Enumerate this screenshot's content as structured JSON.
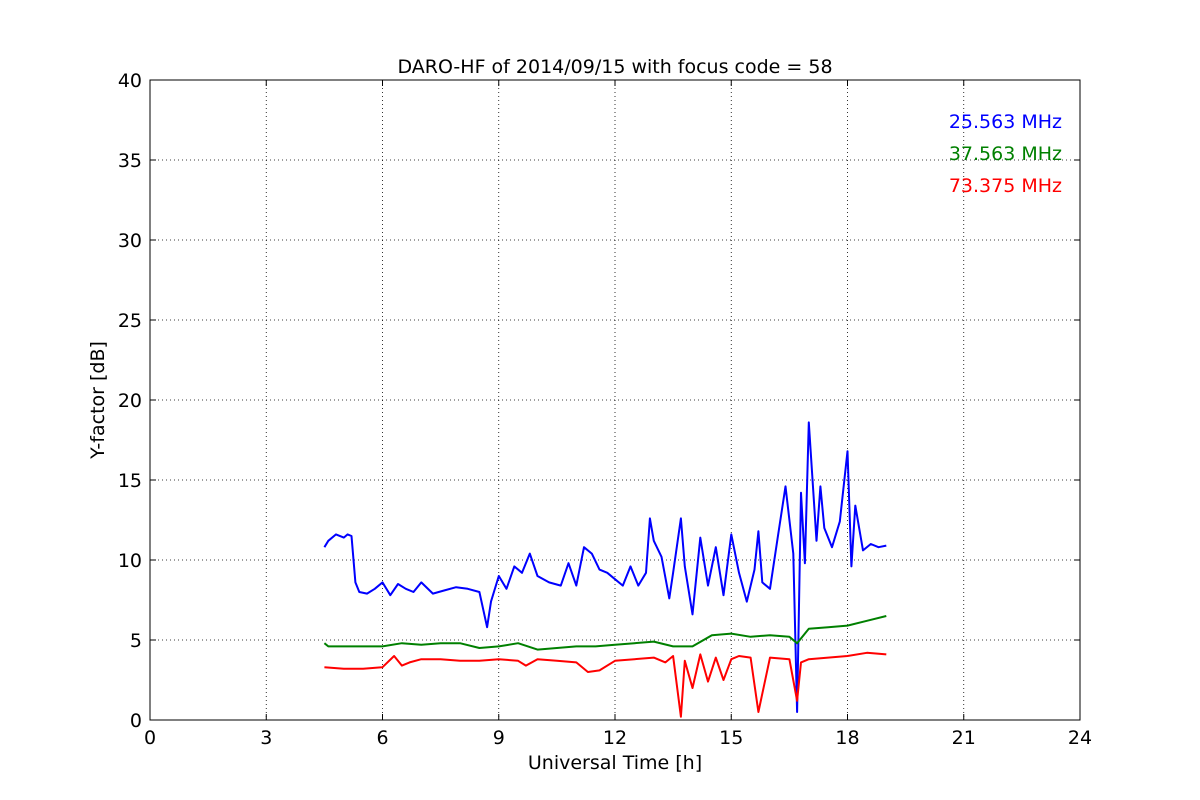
{
  "chart_data": {
    "type": "line",
    "title": "DARO-HF of 2014/09/15 with focus code = 58",
    "xlabel": "Universal Time [h]",
    "ylabel": "Y-factor [dB]",
    "xlim": [
      0,
      24
    ],
    "ylim": [
      0,
      40
    ],
    "xticks": [
      0,
      3,
      6,
      9,
      12,
      15,
      18,
      21,
      24
    ],
    "yticks": [
      0,
      5,
      10,
      15,
      20,
      25,
      30,
      35,
      40
    ],
    "grid": true,
    "legend_position": "top-right",
    "series": [
      {
        "name": "25.563 MHz",
        "color": "#0000ff",
        "x": [
          4.5,
          4.6,
          4.8,
          5.0,
          5.1,
          5.2,
          5.3,
          5.4,
          5.6,
          5.8,
          6.0,
          6.2,
          6.4,
          6.6,
          6.8,
          7.0,
          7.3,
          7.6,
          7.9,
          8.2,
          8.5,
          8.7,
          8.8,
          9.0,
          9.2,
          9.4,
          9.6,
          9.8,
          10.0,
          10.3,
          10.6,
          10.8,
          11.0,
          11.2,
          11.4,
          11.6,
          11.8,
          12.0,
          12.2,
          12.4,
          12.6,
          12.8,
          12.9,
          13.0,
          13.2,
          13.4,
          13.5,
          13.7,
          13.8,
          14.0,
          14.2,
          14.4,
          14.6,
          14.8,
          15.0,
          15.2,
          15.4,
          15.6,
          15.7,
          15.8,
          16.0,
          16.2,
          16.4,
          16.6,
          16.7,
          16.8,
          16.9,
          17.0,
          17.2,
          17.3,
          17.4,
          17.6,
          17.8,
          18.0,
          18.1,
          18.2,
          18.4,
          18.6,
          18.8,
          19.0
        ],
        "y": [
          10.8,
          11.2,
          11.6,
          11.4,
          11.6,
          11.5,
          8.6,
          8.0,
          7.9,
          8.2,
          8.6,
          7.8,
          8.5,
          8.2,
          8.0,
          8.6,
          7.9,
          8.1,
          8.3,
          8.2,
          8.0,
          5.8,
          7.4,
          9.0,
          8.2,
          9.6,
          9.2,
          10.4,
          9.0,
          8.6,
          8.4,
          9.8,
          8.4,
          10.8,
          10.4,
          9.4,
          9.2,
          8.8,
          8.4,
          9.6,
          8.4,
          9.2,
          12.6,
          11.2,
          10.2,
          7.6,
          9.2,
          12.6,
          9.6,
          6.6,
          11.4,
          8.4,
          10.8,
          7.8,
          11.6,
          9.2,
          7.4,
          9.4,
          11.8,
          8.6,
          8.2,
          11.4,
          14.6,
          10.4,
          0.5,
          14.2,
          9.8,
          18.6,
          11.2,
          14.6,
          12.0,
          10.8,
          12.4,
          16.8,
          9.6,
          13.4,
          10.6,
          11.0,
          10.8,
          10.9
        ]
      },
      {
        "name": "37.563 MHz",
        "color": "#008000",
        "x": [
          4.5,
          4.6,
          5.0,
          5.5,
          6.0,
          6.5,
          7.0,
          7.5,
          8.0,
          8.5,
          9.0,
          9.5,
          10.0,
          10.5,
          11.0,
          11.5,
          12.0,
          12.5,
          13.0,
          13.5,
          14.0,
          14.5,
          15.0,
          15.5,
          16.0,
          16.5,
          16.7,
          17.0,
          17.5,
          18.0,
          18.5,
          19.0
        ],
        "y": [
          4.8,
          4.6,
          4.6,
          4.6,
          4.6,
          4.8,
          4.7,
          4.8,
          4.8,
          4.5,
          4.6,
          4.8,
          4.4,
          4.5,
          4.6,
          4.6,
          4.7,
          4.8,
          4.9,
          4.6,
          4.6,
          5.3,
          5.4,
          5.2,
          5.3,
          5.2,
          4.8,
          5.7,
          5.8,
          5.9,
          6.2,
          6.5
        ]
      },
      {
        "name": "73.375 MHz",
        "color": "#ff0000",
        "x": [
          4.5,
          5.0,
          5.5,
          6.0,
          6.3,
          6.5,
          6.7,
          7.0,
          7.5,
          8.0,
          8.5,
          9.0,
          9.5,
          9.7,
          10.0,
          10.5,
          11.0,
          11.3,
          11.6,
          12.0,
          12.5,
          13.0,
          13.3,
          13.5,
          13.7,
          13.8,
          14.0,
          14.2,
          14.4,
          14.6,
          14.8,
          15.0,
          15.2,
          15.5,
          15.7,
          16.0,
          16.5,
          16.7,
          16.8,
          17.0,
          17.5,
          18.0,
          18.5,
          19.0
        ],
        "y": [
          3.3,
          3.2,
          3.2,
          3.3,
          4.0,
          3.4,
          3.6,
          3.8,
          3.8,
          3.7,
          3.7,
          3.8,
          3.7,
          3.4,
          3.8,
          3.7,
          3.6,
          3.0,
          3.1,
          3.7,
          3.8,
          3.9,
          3.6,
          4.0,
          0.2,
          3.7,
          2.0,
          4.1,
          2.4,
          3.9,
          2.5,
          3.8,
          4.0,
          3.9,
          0.5,
          3.9,
          3.8,
          1.2,
          3.6,
          3.8,
          3.9,
          4.0,
          4.2,
          4.1
        ]
      }
    ]
  }
}
